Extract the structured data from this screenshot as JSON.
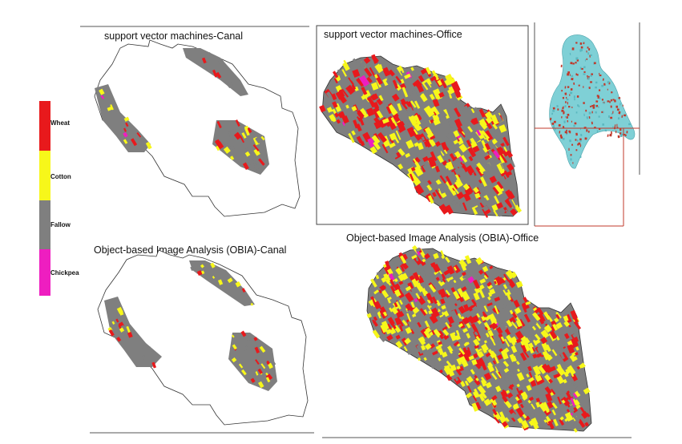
{
  "panels": {
    "svm_canal": {
      "title": "support vector machines-Canal"
    },
    "svm_office": {
      "title": "support vector machines-Office"
    },
    "obia_canal": {
      "title": "Object-based Image Analysis (OBIA)-Canal"
    },
    "obia_office": {
      "title": "Object-based Image Analysis (OBIA)-Office"
    }
  },
  "legend": {
    "items": [
      {
        "label": "Wheat",
        "color": "#e8191c"
      },
      {
        "label": "Cotton",
        "color": "#f7f71a"
      },
      {
        "label": "Fallow",
        "color": "#7f7f7f"
      },
      {
        "label": "Chickpea",
        "color": "#ee1ec0"
      }
    ]
  },
  "colors": {
    "wheat": "#e8191c",
    "cotton": "#f7f71a",
    "fallow": "#7f7f7f",
    "chickpea": "#ee1ec0",
    "inset_fill": "#7fd0d6",
    "inset_fields": "#c0392b"
  }
}
